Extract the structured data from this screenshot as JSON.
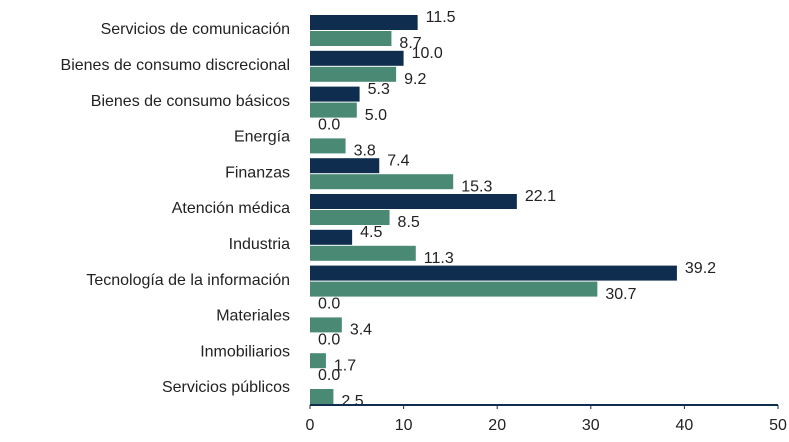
{
  "chart_data": {
    "type": "bar",
    "orientation": "horizontal",
    "categories": [
      "Servicios de comunicación",
      "Bienes de consumo discrecional",
      "Bienes de consumo básicos",
      "Energía",
      "Finanzas",
      "Atención médica",
      "Industria",
      "Tecnología de la información",
      "Materiales",
      "Inmobiliarios",
      "Servicios públicos"
    ],
    "series": [
      {
        "color": "#0f2e4f",
        "values": [
          11.5,
          10.0,
          5.3,
          0.0,
          7.4,
          22.1,
          4.5,
          39.2,
          0.0,
          0.0,
          0.0
        ],
        "value_labels": [
          "11.5",
          "10.0",
          "5.3",
          "0.0",
          "7.4",
          "22.1",
          "4.5",
          "39.2",
          "0.0",
          "0.0",
          "0.0"
        ]
      },
      {
        "color": "#4a8a74",
        "values": [
          8.7,
          9.2,
          5.0,
          3.8,
          15.3,
          8.5,
          11.3,
          30.7,
          3.4,
          1.7,
          2.5
        ],
        "value_labels": [
          "8.7",
          "9.2",
          "5.0",
          "3.8",
          "15.3",
          "8.5",
          "11.3",
          "30.7",
          "3.4",
          "1.7",
          "2.5"
        ]
      }
    ],
    "xlim": [
      0,
      50
    ],
    "xticks": [
      0,
      10,
      20,
      30,
      40,
      50
    ],
    "grid": false
  }
}
